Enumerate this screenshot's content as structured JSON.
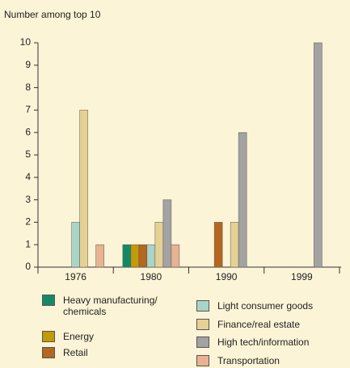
{
  "chart_data": {
    "type": "bar",
    "ylabel": "Number among top 10",
    "categories": [
      "1976",
      "1980",
      "1990",
      "1999"
    ],
    "series": [
      {
        "name": "Heavy manufacturing/ chemicals",
        "color": "#128a68",
        "values": [
          0,
          1,
          0,
          0
        ]
      },
      {
        "name": "Energy",
        "color": "#c49a06",
        "values": [
          0,
          1,
          0,
          0
        ]
      },
      {
        "name": "Retail",
        "color": "#b5661f",
        "values": [
          0,
          1,
          2,
          0
        ]
      },
      {
        "name": "Light consumer goods",
        "color": "#a9d5c6",
        "values": [
          2,
          1,
          0,
          0
        ]
      },
      {
        "name": "Finance/real estate",
        "color": "#e6d195",
        "values": [
          7,
          2,
          2,
          0
        ]
      },
      {
        "name": "High tech/information",
        "color": "#a3a3a3",
        "values": [
          0,
          3,
          6,
          10
        ]
      },
      {
        "name": "Transportation",
        "color": "#e9b291",
        "values": [
          1,
          1,
          0,
          0
        ]
      }
    ],
    "ylim": [
      0,
      10
    ],
    "yticks": [
      0,
      1,
      2,
      3,
      4,
      5,
      6,
      7,
      8,
      9,
      10
    ],
    "grid": false
  }
}
